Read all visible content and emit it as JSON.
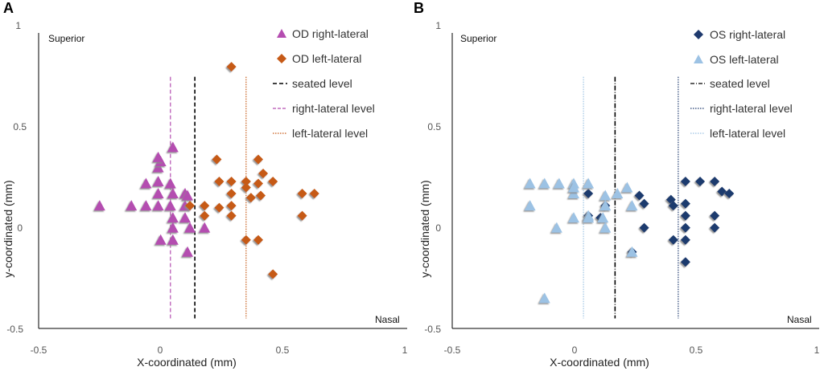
{
  "colors": {
    "od_right": "#b44db0",
    "od_left": "#c65a17",
    "os_right": "#1f3a6e",
    "os_left": "#9cc2e4",
    "seated": "#000000",
    "shadow": "#9a9a9a"
  },
  "chart_data": [
    {
      "panel_label": "A",
      "type": "scatter",
      "xlabel": "X-coordinated (mm)",
      "ylabel": "y-coordinated (mm)",
      "superior_label": "Superior",
      "nasal_label": "Nasal",
      "xlim": [
        -0.5,
        1
      ],
      "ylim": [
        -0.5,
        1
      ],
      "x_ticks": [
        -0.5,
        0,
        0.5,
        1
      ],
      "x_tick_labels": [
        "-0.5",
        "0",
        "0.5",
        "1"
      ],
      "y_ticks": [
        -0.5,
        0,
        0.5,
        1
      ],
      "y_tick_labels": [
        "-0.5",
        "0",
        "0.5",
        "1"
      ],
      "series": [
        {
          "name": "OD right-lateral",
          "marker": "triangle",
          "color_key": "od_right",
          "points": [
            [
              -0.25,
              0.11
            ],
            [
              -0.12,
              0.11
            ],
            [
              -0.06,
              0.11
            ],
            [
              -0.01,
              0.11
            ],
            [
              0.04,
              0.11
            ],
            [
              0.1,
              0.11
            ],
            [
              -0.06,
              0.22
            ],
            [
              -0.01,
              0.23
            ],
            [
              0.04,
              0.22
            ],
            [
              0.1,
              0.17
            ],
            [
              0.11,
              0.16
            ],
            [
              -0.01,
              0.3
            ],
            [
              0.0,
              0.33
            ],
            [
              -0.01,
              0.35
            ],
            [
              0.05,
              0.4
            ],
            [
              0.05,
              0.17
            ],
            [
              0.05,
              0.05
            ],
            [
              0.1,
              0.05
            ],
            [
              0.05,
              0.0
            ],
            [
              0.12,
              0.0
            ],
            [
              0.18,
              0.0
            ],
            [
              0.0,
              -0.06
            ],
            [
              0.05,
              -0.06
            ],
            [
              0.11,
              -0.12
            ],
            [
              -0.01,
              0.17
            ]
          ]
        },
        {
          "name": "OD left-lateral",
          "marker": "diamond",
          "color_key": "od_left",
          "points": [
            [
              0.29,
              0.8
            ],
            [
              0.23,
              0.34
            ],
            [
              0.4,
              0.34
            ],
            [
              0.42,
              0.27
            ],
            [
              0.24,
              0.23
            ],
            [
              0.29,
              0.23
            ],
            [
              0.35,
              0.23
            ],
            [
              0.4,
              0.22
            ],
            [
              0.46,
              0.23
            ],
            [
              0.35,
              0.2
            ],
            [
              0.29,
              0.17
            ],
            [
              0.37,
              0.15
            ],
            [
              0.41,
              0.16
            ],
            [
              0.58,
              0.17
            ],
            [
              0.63,
              0.17
            ],
            [
              0.12,
              0.11
            ],
            [
              0.18,
              0.11
            ],
            [
              0.29,
              0.11
            ],
            [
              0.24,
              0.1
            ],
            [
              0.18,
              0.06
            ],
            [
              0.29,
              0.06
            ],
            [
              0.58,
              0.06
            ],
            [
              0.35,
              -0.06
            ],
            [
              0.4,
              -0.06
            ],
            [
              0.46,
              -0.23
            ]
          ]
        }
      ],
      "reference_lines": [
        {
          "name": "seated level",
          "x": 0.14,
          "color_key": "seated",
          "style": "dashed"
        },
        {
          "name": "right-lateral level",
          "x": 0.04,
          "color_key": "od_right",
          "style": "dashed"
        },
        {
          "name": "left-lateral level",
          "x": 0.35,
          "color_key": "od_left",
          "style": "dotted"
        }
      ],
      "reference_line_range": [
        -0.45,
        0.75
      ],
      "legend_position": "top-right"
    },
    {
      "panel_label": "B",
      "type": "scatter",
      "xlabel": "X-coordinated (mm)",
      "ylabel": "y-coordinated (mm)",
      "superior_label": "Superior",
      "nasal_label": "Nasal",
      "xlim": [
        -0.5,
        1
      ],
      "ylim": [
        -0.5,
        1
      ],
      "x_ticks": [
        -0.5,
        0,
        0.5,
        1
      ],
      "x_tick_labels": [
        "-0.5",
        "0",
        "0.5",
        "1"
      ],
      "y_ticks": [
        -0.5,
        0,
        0.5,
        1
      ],
      "y_tick_labels": [
        "-0.5",
        "0",
        "0.5",
        "1"
      ],
      "series": [
        {
          "name": "OS right-lateral",
          "marker": "diamond",
          "color_key": "os_right",
          "points": [
            [
              0.46,
              0.23
            ],
            [
              0.52,
              0.23
            ],
            [
              0.58,
              0.23
            ],
            [
              0.61,
              0.18
            ],
            [
              0.64,
              0.17
            ],
            [
              0.06,
              0.17
            ],
            [
              0.27,
              0.16
            ],
            [
              0.4,
              0.14
            ],
            [
              0.41,
              0.11
            ],
            [
              0.46,
              0.12
            ],
            [
              0.29,
              0.12
            ],
            [
              0.13,
              0.11
            ],
            [
              0.06,
              0.06
            ],
            [
              0.11,
              0.05
            ],
            [
              0.46,
              0.06
            ],
            [
              0.58,
              0.06
            ],
            [
              0.29,
              0.0
            ],
            [
              0.46,
              0.0
            ],
            [
              0.58,
              0.0
            ],
            [
              0.41,
              -0.06
            ],
            [
              0.46,
              -0.06
            ],
            [
              0.24,
              -0.12
            ],
            [
              0.46,
              -0.17
            ]
          ]
        },
        {
          "name": "OS left-lateral",
          "marker": "triangle",
          "color_key": "os_left",
          "points": [
            [
              -0.18,
              0.22
            ],
            [
              -0.12,
              0.22
            ],
            [
              -0.06,
              0.22
            ],
            [
              0.0,
              0.22
            ],
            [
              0.06,
              0.22
            ],
            [
              0.0,
              0.17
            ],
            [
              0.13,
              0.16
            ],
            [
              0.18,
              0.17
            ],
            [
              0.24,
              0.11
            ],
            [
              0.22,
              0.2
            ],
            [
              -0.18,
              0.11
            ],
            [
              0.13,
              0.11
            ],
            [
              0.06,
              0.06
            ],
            [
              0.0,
              0.05
            ],
            [
              0.12,
              0.05
            ],
            [
              0.06,
              0.05
            ],
            [
              -0.07,
              0.0
            ],
            [
              0.13,
              0.0
            ],
            [
              0.24,
              -0.12
            ],
            [
              -0.12,
              -0.35
            ],
            [
              0.0,
              0.2
            ]
          ]
        }
      ],
      "reference_lines": [
        {
          "name": "seated level",
          "x": 0.17,
          "color_key": "seated",
          "style": "dashdot"
        },
        {
          "name": "right-lateral level",
          "x": 0.43,
          "color_key": "os_right",
          "style": "dotted"
        },
        {
          "name": "left-lateral level",
          "x": 0.04,
          "color_key": "os_left",
          "style": "dotted"
        }
      ],
      "reference_line_range": [
        -0.45,
        0.75
      ],
      "legend_position": "top-right"
    }
  ]
}
